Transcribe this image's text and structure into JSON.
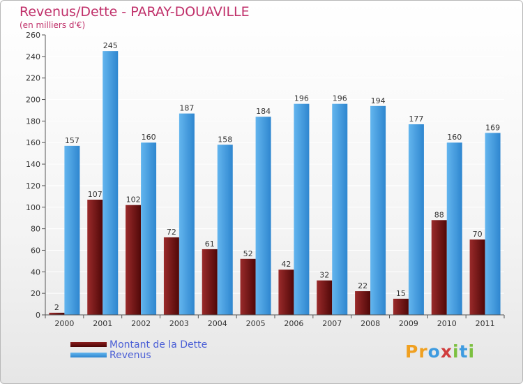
{
  "title": "Revenus/Dette - PARAY-DOUAVILLE",
  "subtitle": "(en milliers d'€)",
  "colors": {
    "debt": "#6e1010",
    "revenue": "#4ea6e6",
    "title": "#c0306a",
    "legend_text": "#4b5fd6"
  },
  "legend": {
    "debt_label": "Montant de la Dette",
    "revenue_label": "Revenus"
  },
  "logo": {
    "letters": [
      "P",
      "r",
      "o",
      "x",
      "i",
      "t",
      "i"
    ],
    "colors": [
      "#f0a020",
      "#f0a020",
      "#3e9be0",
      "#d03c3c",
      "#7cc040",
      "#3e9be0",
      "#7cc040"
    ]
  },
  "chart_data": {
    "type": "bar",
    "title": "Revenus/Dette - PARAY-DOUAVILLE",
    "subtitle": "(en milliers d'€)",
    "categories": [
      "2000",
      "2001",
      "2002",
      "2003",
      "2004",
      "2005",
      "2006",
      "2007",
      "2008",
      "2009",
      "2010",
      "2011"
    ],
    "series": [
      {
        "name": "Montant de la Dette",
        "values": [
          2,
          107,
          102,
          72,
          61,
          52,
          42,
          32,
          22,
          15,
          88,
          70
        ]
      },
      {
        "name": "Revenus",
        "values": [
          157,
          245,
          160,
          187,
          158,
          184,
          196,
          196,
          194,
          177,
          160,
          169
        ]
      }
    ],
    "ylim": [
      0,
      260
    ],
    "yticks": [
      0,
      20,
      40,
      60,
      80,
      100,
      120,
      140,
      160,
      180,
      200,
      220,
      240,
      260
    ],
    "grid": true,
    "legend_position": "bottom-left"
  }
}
